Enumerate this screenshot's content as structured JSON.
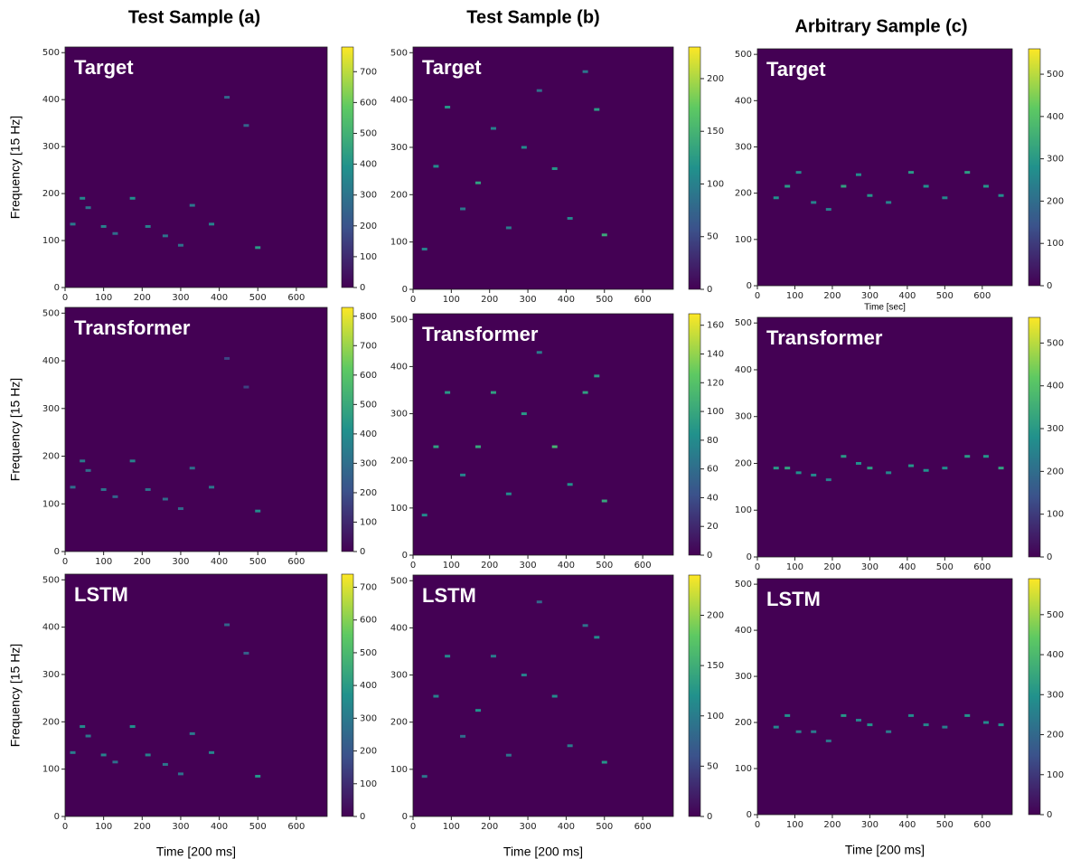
{
  "column_titles": [
    "Test Sample (a)",
    "Test Sample (b)",
    "Arbitrary Sample (c)"
  ],
  "chart_data": [
    {
      "type": "heatmap",
      "title": "Target",
      "ylabel": "Frequency [15 Hz]",
      "xlim": [
        0,
        680
      ],
      "ylim": [
        0,
        512
      ],
      "xticks": [
        0,
        100,
        200,
        300,
        400,
        500,
        600
      ],
      "yticks": [
        0,
        100,
        200,
        300,
        400,
        500
      ],
      "clim": [
        0,
        780
      ],
      "cticks": [
        0,
        100,
        200,
        300,
        400,
        500,
        600,
        700
      ],
      "x": [
        20,
        45,
        60,
        100,
        130,
        175,
        215,
        260,
        300,
        330,
        380,
        420,
        470,
        500
      ],
      "y": [
        135,
        190,
        170,
        130,
        115,
        190,
        130,
        110,
        90,
        175,
        135,
        405,
        345,
        85
      ],
      "values": [
        320,
        360,
        300,
        340,
        280,
        380,
        330,
        300,
        290,
        310,
        350,
        260,
        250,
        420
      ]
    },
    {
      "type": "heatmap",
      "title": "Transformer",
      "ylabel": "Frequency [15 Hz]",
      "xlim": [
        0,
        680
      ],
      "ylim": [
        0,
        512
      ],
      "xticks": [
        0,
        100,
        200,
        300,
        400,
        500,
        600
      ],
      "yticks": [
        0,
        100,
        200,
        300,
        400,
        500
      ],
      "clim": [
        0,
        830
      ],
      "cticks": [
        0,
        100,
        200,
        300,
        400,
        500,
        600,
        700,
        800
      ],
      "x": [
        20,
        45,
        60,
        100,
        130,
        175,
        215,
        260,
        300,
        330,
        380,
        420,
        470,
        500
      ],
      "y": [
        135,
        190,
        170,
        130,
        115,
        190,
        130,
        110,
        90,
        175,
        135,
        405,
        345,
        85
      ],
      "values": [
        300,
        340,
        290,
        320,
        270,
        360,
        310,
        290,
        280,
        300,
        330,
        180,
        170,
        400
      ]
    },
    {
      "type": "heatmap",
      "title": "LSTM",
      "ylabel": "Frequency [15 Hz]",
      "xlabel": "Time [200 ms]",
      "xlim": [
        0,
        680
      ],
      "ylim": [
        0,
        512
      ],
      "xticks": [
        0,
        100,
        200,
        300,
        400,
        500,
        600
      ],
      "yticks": [
        0,
        100,
        200,
        300,
        400,
        500
      ],
      "clim": [
        0,
        740
      ],
      "cticks": [
        0,
        100,
        200,
        300,
        400,
        500,
        600,
        700
      ],
      "x": [
        20,
        45,
        60,
        100,
        130,
        175,
        215,
        260,
        300,
        330,
        380,
        420,
        470,
        500
      ],
      "y": [
        135,
        190,
        170,
        130,
        115,
        190,
        130,
        110,
        90,
        175,
        135,
        405,
        345,
        85
      ],
      "values": [
        310,
        350,
        290,
        330,
        270,
        370,
        320,
        290,
        280,
        300,
        340,
        240,
        230,
        380
      ]
    },
    {
      "type": "heatmap",
      "title": "Target",
      "xlim": [
        0,
        680
      ],
      "ylim": [
        0,
        512
      ],
      "xticks": [
        0,
        100,
        200,
        300,
        400,
        500,
        600
      ],
      "yticks": [
        0,
        100,
        200,
        300,
        400,
        500
      ],
      "clim": [
        0,
        230
      ],
      "cticks": [
        0,
        50,
        100,
        150,
        200
      ],
      "x": [
        30,
        60,
        90,
        130,
        170,
        210,
        250,
        290,
        330,
        370,
        410,
        450,
        480,
        500
      ],
      "y": [
        85,
        260,
        385,
        170,
        225,
        340,
        130,
        300,
        420,
        255,
        150,
        460,
        380,
        115
      ],
      "values": [
        100,
        110,
        120,
        90,
        130,
        100,
        95,
        110,
        85,
        120,
        105,
        90,
        125,
        140
      ]
    },
    {
      "type": "heatmap",
      "title": "Transformer",
      "xlim": [
        0,
        680
      ],
      "ylim": [
        0,
        512
      ],
      "xticks": [
        0,
        100,
        200,
        300,
        400,
        500,
        600
      ],
      "yticks": [
        0,
        100,
        200,
        300,
        400,
        500
      ],
      "clim": [
        0,
        168
      ],
      "cticks": [
        0,
        20,
        40,
        60,
        80,
        100,
        120,
        140,
        160
      ],
      "x": [
        30,
        60,
        90,
        130,
        170,
        210,
        250,
        290,
        330,
        370,
        410,
        450,
        480,
        500
      ],
      "y": [
        85,
        230,
        345,
        170,
        230,
        345,
        130,
        300,
        430,
        230,
        150,
        345,
        380,
        115
      ],
      "values": [
        80,
        95,
        90,
        75,
        100,
        95,
        80,
        90,
        70,
        110,
        85,
        95,
        90,
        100
      ]
    },
    {
      "type": "heatmap",
      "title": "LSTM",
      "xlabel": "Time [200 ms]",
      "xlim": [
        0,
        680
      ],
      "ylim": [
        0,
        512
      ],
      "xticks": [
        0,
        100,
        200,
        300,
        400,
        500,
        600
      ],
      "yticks": [
        0,
        100,
        200,
        300,
        400,
        500
      ],
      "clim": [
        0,
        240
      ],
      "cticks": [
        0,
        50,
        100,
        150,
        200
      ],
      "x": [
        30,
        60,
        90,
        130,
        170,
        210,
        250,
        290,
        330,
        370,
        410,
        450,
        480,
        500
      ],
      "y": [
        85,
        255,
        340,
        170,
        225,
        340,
        130,
        300,
        455,
        255,
        150,
        405,
        380,
        115
      ],
      "values": [
        95,
        105,
        110,
        85,
        120,
        100,
        90,
        105,
        80,
        115,
        100,
        90,
        115,
        125
      ]
    },
    {
      "type": "heatmap",
      "title": "Target",
      "xlabel": "Time [sec]",
      "xlim": [
        0,
        680
      ],
      "ylim": [
        0,
        512
      ],
      "xticks": [
        0,
        100,
        200,
        300,
        400,
        500,
        600
      ],
      "yticks": [
        0,
        100,
        200,
        300,
        400,
        500
      ],
      "clim": [
        0,
        560
      ],
      "cticks": [
        0,
        100,
        200,
        300,
        400,
        500
      ],
      "x": [
        50,
        80,
        110,
        150,
        190,
        230,
        270,
        300,
        350,
        410,
        450,
        500,
        560,
        610,
        650
      ],
      "y": [
        190,
        215,
        245,
        180,
        165,
        215,
        240,
        195,
        180,
        245,
        215,
        190,
        245,
        215,
        195
      ],
      "values": [
        280,
        300,
        260,
        250,
        240,
        320,
        270,
        290,
        250,
        300,
        280,
        260,
        310,
        290,
        270
      ]
    },
    {
      "type": "heatmap",
      "title": "Transformer",
      "xlim": [
        0,
        680
      ],
      "ylim": [
        0,
        512
      ],
      "xticks": [
        0,
        100,
        200,
        300,
        400,
        500,
        600
      ],
      "yticks": [
        0,
        100,
        200,
        300,
        400,
        500
      ],
      "clim": [
        0,
        560
      ],
      "cticks": [
        0,
        100,
        200,
        300,
        400,
        500
      ],
      "x": [
        50,
        80,
        110,
        150,
        190,
        230,
        270,
        300,
        350,
        410,
        450,
        500,
        560,
        610,
        650
      ],
      "y": [
        190,
        190,
        180,
        175,
        165,
        215,
        200,
        190,
        180,
        195,
        185,
        190,
        215,
        215,
        190
      ],
      "values": [
        300,
        320,
        280,
        260,
        240,
        300,
        280,
        310,
        260,
        290,
        280,
        270,
        300,
        290,
        320
      ]
    },
    {
      "type": "heatmap",
      "title": "LSTM",
      "xlabel": "Time [200 ms]",
      "xlim": [
        0,
        680
      ],
      "ylim": [
        0,
        512
      ],
      "xticks": [
        0,
        100,
        200,
        300,
        400,
        500,
        600
      ],
      "yticks": [
        0,
        100,
        200,
        300,
        400,
        500
      ],
      "clim": [
        0,
        590
      ],
      "cticks": [
        0,
        100,
        200,
        300,
        400,
        500
      ],
      "x": [
        50,
        80,
        110,
        150,
        190,
        230,
        270,
        300,
        350,
        410,
        450,
        500,
        560,
        610,
        650
      ],
      "y": [
        190,
        215,
        180,
        180,
        160,
        215,
        205,
        195,
        180,
        215,
        195,
        190,
        215,
        200,
        195
      ],
      "values": [
        270,
        290,
        250,
        240,
        230,
        310,
        260,
        300,
        240,
        280,
        270,
        250,
        300,
        280,
        290
      ]
    }
  ]
}
